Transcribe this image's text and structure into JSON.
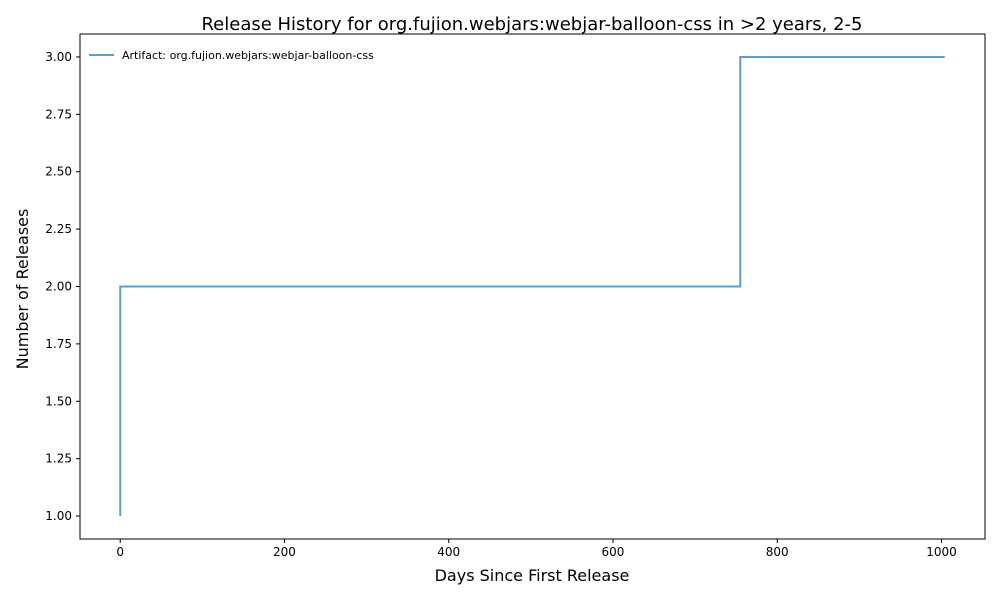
{
  "chart_data": {
    "type": "line",
    "step": "post",
    "title": "Release History for org.fujion.webjars:webjar-balloon-css in >2 years, 2-5",
    "xlabel": "Days Since First Release",
    "ylabel": "Number of Releases",
    "xlim": [
      -49,
      1053
    ],
    "ylim": [
      0.9,
      3.1
    ],
    "xticks": [
      0,
      200,
      400,
      600,
      800,
      1000
    ],
    "yticks": [
      1.0,
      1.25,
      1.5,
      1.75,
      2.0,
      2.25,
      2.5,
      2.75,
      3.0
    ],
    "xtick_labels": [
      "0",
      "200",
      "400",
      "600",
      "800",
      "1000"
    ],
    "ytick_labels": [
      "1.00",
      "1.25",
      "1.50",
      "1.75",
      "2.00",
      "2.25",
      "2.50",
      "2.75",
      "3.00"
    ],
    "grid": false,
    "legend_position": "top-left",
    "series": [
      {
        "name": "Artifact: org.fujion.webjars:webjar-balloon-css",
        "color": "#5b9ec9",
        "x": [
          0,
          0,
          755,
          1004
        ],
        "y": [
          1,
          2,
          3,
          3
        ]
      }
    ]
  }
}
